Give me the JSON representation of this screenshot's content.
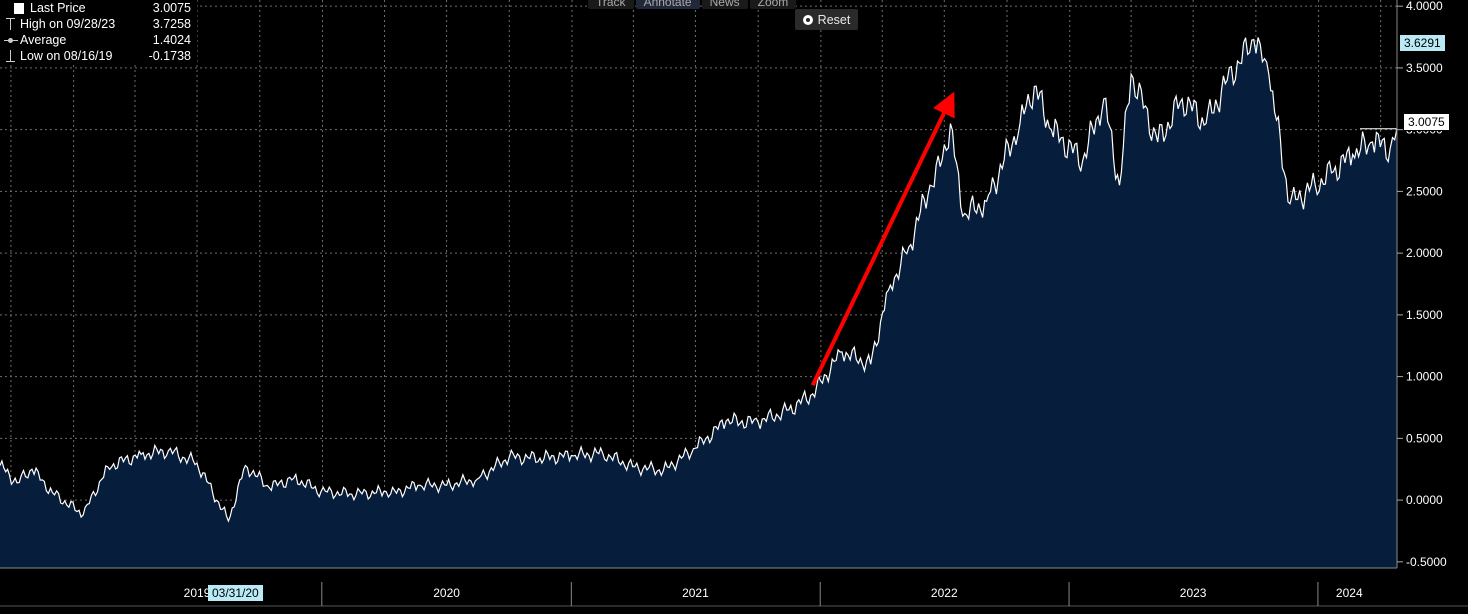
{
  "legend": {
    "last_label": "Last Price",
    "last_value": "3.0075",
    "high_label": "High on 09/28/23",
    "high_value": "3.7258",
    "avg_label": "Average",
    "avg_value": "1.4024",
    "low_label": "Low on 08/16/19",
    "low_value": "-0.1738"
  },
  "toolbar": {
    "track": "Track",
    "annotate": "Annotate",
    "news": "News",
    "zoom": "Zoom",
    "reset": "Reset"
  },
  "tags": {
    "high_tag": "3.6291",
    "last_tag": "3.0075",
    "date_tag": "03/31/20"
  },
  "colors": {
    "area": "#061d3b",
    "line": "#ffffff",
    "arrow": "#ff0000",
    "tag_blue": "#b9eaf5"
  },
  "chart_data": {
    "type": "area",
    "title": "",
    "xlabel": "",
    "ylabel": "",
    "ylim": [
      -0.55,
      4.05
    ],
    "y_ticks": [
      "4.0000",
      "3.5000",
      "3.0000",
      "2.5000",
      "2.0000",
      "1.5000",
      "1.0000",
      "0.5000",
      "0.0000",
      "-0.5000"
    ],
    "y_tick_values": [
      4.0,
      3.5,
      3.0,
      2.5,
      2.0,
      1.5,
      1.0,
      0.5,
      0.0,
      -0.5
    ],
    "x_range": [
      "2018-09-15",
      "2024-04-25"
    ],
    "x_labels": [
      "2019",
      "2020",
      "2021",
      "2022",
      "2023",
      "2024"
    ],
    "x_label_dates": [
      "2019-07-01",
      "2020-07-01",
      "2021-07-01",
      "2022-07-01",
      "2023-07-01",
      "2024-02-15"
    ],
    "x_separators": [
      "2019-12-31",
      "2020-12-31",
      "2021-12-31",
      "2022-12-31",
      "2023-12-31"
    ],
    "grid": true,
    "series": [
      {
        "x": [
          "2018-09-15",
          "2018-10-10",
          "2018-11-01",
          "2018-12-01",
          "2019-01-15",
          "2019-02-20",
          "2019-04-10",
          "2019-05-20",
          "2019-07-01",
          "2019-08-16",
          "2019-09-10",
          "2019-10-15",
          "2019-11-20",
          "2019-12-30",
          "2020-02-10",
          "2020-03-20",
          "2020-03-31",
          "2020-04-10",
          "2020-05-20",
          "2020-07-01",
          "2020-08-15",
          "2020-10-01",
          "2020-11-15",
          "2020-12-31",
          "2021-02-15",
          "2021-03-31",
          "2021-05-15",
          "2021-07-01",
          "2021-08-15",
          "2021-10-01",
          "2021-11-15",
          "2021-12-20",
          "2022-02-01",
          "2022-03-15",
          "2022-04-10",
          "2022-05-10",
          "2022-06-10",
          "2022-06-25",
          "2022-07-10",
          "2022-07-28",
          "2022-09-01",
          "2022-10-20",
          "2022-11-10",
          "2022-12-05",
          "2023-01-20",
          "2023-02-20",
          "2023-03-15",
          "2023-04-01",
          "2023-05-10",
          "2023-06-15",
          "2023-07-20",
          "2023-08-20",
          "2023-09-28",
          "2023-10-20",
          "2023-11-20",
          "2023-12-27",
          "2024-01-20",
          "2024-02-20",
          "2024-03-20",
          "2024-04-15",
          "2024-04-25"
        ],
        "y": [
          0.28,
          0.14,
          0.25,
          0.06,
          -0.12,
          0.27,
          0.37,
          0.4,
          0.3,
          -0.17,
          0.28,
          0.1,
          0.18,
          0.07,
          0.05,
          0.06,
          0.07,
          0.05,
          0.12,
          0.12,
          0.17,
          0.35,
          0.34,
          0.36,
          0.38,
          0.27,
          0.24,
          0.42,
          0.64,
          0.63,
          0.73,
          0.86,
          1.2,
          1.1,
          1.7,
          2.05,
          2.55,
          2.7,
          3.05,
          2.3,
          2.42,
          3.05,
          3.35,
          3.0,
          2.75,
          3.25,
          2.55,
          3.45,
          2.9,
          3.25,
          3.05,
          3.4,
          3.73,
          3.45,
          2.4,
          2.55,
          2.65,
          2.8,
          2.9,
          2.85,
          3.01
        ]
      }
    ],
    "annotations": [
      {
        "type": "arrow",
        "color": "#ff0000",
        "from": {
          "x": "2021-12-20",
          "y": 0.93
        },
        "to": {
          "x": "2022-07-08",
          "y": 3.22
        }
      }
    ],
    "last_price": 3.0075,
    "high": 3.7258,
    "highlight_value": 3.6291
  }
}
